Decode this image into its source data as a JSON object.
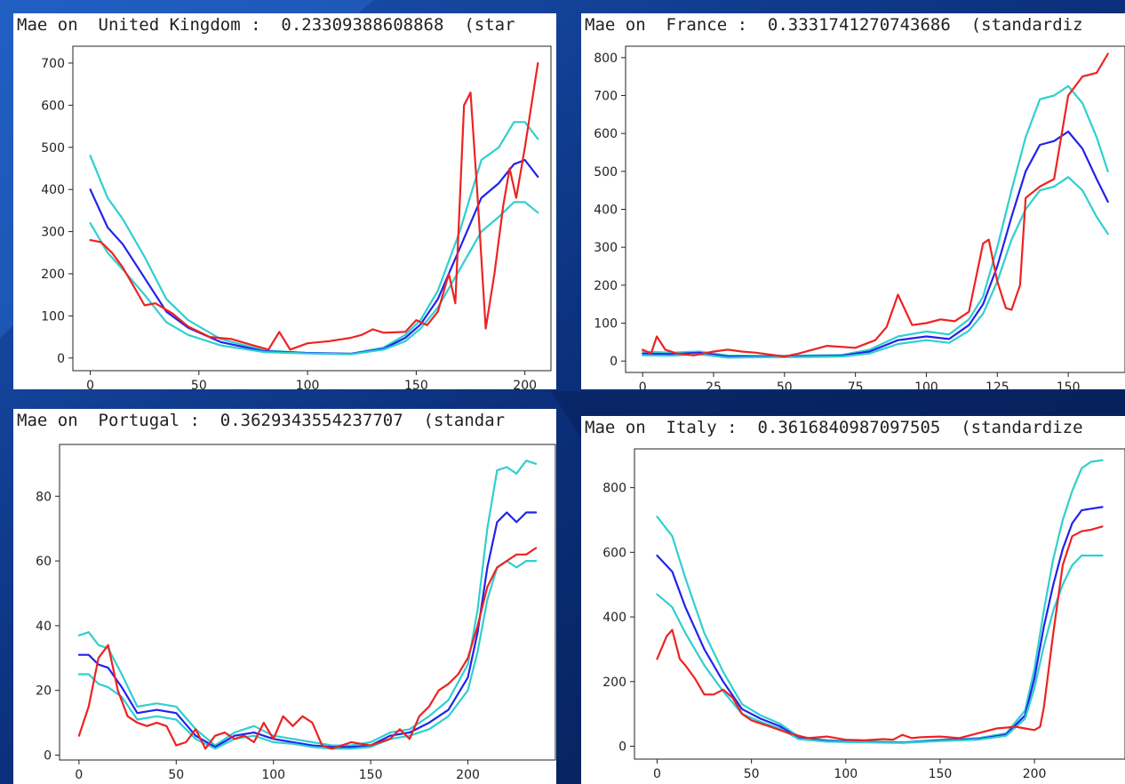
{
  "chart_data": [
    {
      "type": "line",
      "title": "Mae on  United Kingdom :  0.23309388608868  (star",
      "xlim": [
        -8,
        212
      ],
      "ylim": [
        -30,
        740
      ],
      "xticks": [
        0,
        50,
        100,
        150,
        200
      ],
      "yticks": [
        0,
        100,
        200,
        300,
        400,
        500,
        600,
        700
      ],
      "series": [
        {
          "color": "#30cfcf",
          "x": [
            0,
            8,
            15,
            25,
            35,
            45,
            60,
            80,
            100,
            120,
            135,
            145,
            152,
            160,
            170,
            180,
            188,
            195,
            200,
            206
          ],
          "y": [
            480,
            380,
            330,
            240,
            140,
            90,
            45,
            18,
            12,
            10,
            25,
            55,
            90,
            160,
            300,
            470,
            500,
            560,
            560,
            520
          ]
        },
        {
          "color": "#2222ee",
          "x": [
            0,
            8,
            15,
            25,
            35,
            45,
            60,
            80,
            100,
            120,
            135,
            145,
            152,
            160,
            170,
            180,
            188,
            195,
            200,
            206
          ],
          "y": [
            400,
            310,
            270,
            190,
            110,
            72,
            38,
            16,
            12,
            10,
            22,
            48,
            80,
            140,
            260,
            380,
            415,
            460,
            470,
            430
          ]
        },
        {
          "color": "#30cfcf",
          "x": [
            0,
            8,
            15,
            25,
            35,
            45,
            60,
            80,
            100,
            120,
            135,
            145,
            152,
            160,
            170,
            180,
            188,
            195,
            200,
            206
          ],
          "y": [
            320,
            250,
            210,
            150,
            85,
            55,
            30,
            14,
            11,
            9,
            20,
            40,
            70,
            120,
            210,
            300,
            335,
            370,
            370,
            345
          ]
        },
        {
          "color": "#ee2222",
          "x": [
            0,
            5,
            10,
            15,
            20,
            25,
            30,
            38,
            45,
            55,
            65,
            75,
            82,
            87,
            92,
            100,
            110,
            120,
            125,
            130,
            135,
            145,
            150,
            155,
            160,
            165,
            168,
            172,
            175,
            178,
            182,
            186,
            190,
            193,
            196,
            200,
            203,
            206
          ],
          "y": [
            280,
            275,
            250,
            215,
            170,
            125,
            130,
            105,
            75,
            50,
            45,
            30,
            20,
            62,
            20,
            35,
            40,
            48,
            55,
            68,
            60,
            62,
            90,
            78,
            110,
            200,
            130,
            600,
            630,
            400,
            70,
            200,
            360,
            450,
            380,
            500,
            600,
            700
          ]
        }
      ]
    },
    {
      "type": "line",
      "title": "Mae on  France :  0.3331741270743686  (standardiz",
      "xlim": [
        -6,
        170
      ],
      "ylim": [
        -30,
        830
      ],
      "xticks": [
        0,
        25,
        50,
        75,
        100,
        125,
        150
      ],
      "yticks": [
        0,
        100,
        200,
        300,
        400,
        500,
        600,
        700,
        800
      ],
      "series": [
        {
          "color": "#30cfcf",
          "x": [
            0,
            10,
            20,
            30,
            40,
            50,
            60,
            70,
            80,
            90,
            100,
            108,
            115,
            120,
            125,
            130,
            135,
            140,
            145,
            150,
            155,
            160,
            164
          ],
          "y": [
            25,
            22,
            25,
            15,
            14,
            14,
            15,
            16,
            30,
            65,
            78,
            70,
            110,
            170,
            300,
            450,
            590,
            690,
            700,
            725,
            680,
            590,
            500
          ]
        },
        {
          "color": "#2222ee",
          "x": [
            0,
            10,
            20,
            30,
            40,
            50,
            60,
            70,
            80,
            90,
            100,
            108,
            115,
            120,
            125,
            130,
            135,
            140,
            145,
            150,
            155,
            160,
            164
          ],
          "y": [
            20,
            18,
            22,
            12,
            12,
            12,
            13,
            14,
            25,
            55,
            65,
            58,
            95,
            150,
            250,
            380,
            500,
            570,
            580,
            605,
            560,
            480,
            420
          ]
        },
        {
          "color": "#30cfcf",
          "x": [
            0,
            10,
            20,
            30,
            40,
            50,
            60,
            70,
            80,
            90,
            100,
            108,
            115,
            120,
            125,
            130,
            135,
            140,
            145,
            150,
            155,
            160,
            164
          ],
          "y": [
            15,
            14,
            18,
            9,
            10,
            10,
            11,
            12,
            20,
            45,
            55,
            48,
            80,
            125,
            210,
            320,
            400,
            450,
            460,
            485,
            450,
            380,
            335
          ]
        },
        {
          "color": "#ee2222",
          "x": [
            0,
            3,
            5,
            8,
            12,
            18,
            25,
            30,
            35,
            40,
            50,
            55,
            65,
            75,
            82,
            86,
            90,
            95,
            100,
            105,
            110,
            115,
            120,
            122,
            125,
            128,
            130,
            133,
            135,
            140,
            145,
            150,
            155,
            160,
            164
          ],
          "y": [
            30,
            20,
            65,
            30,
            20,
            15,
            25,
            30,
            25,
            22,
            12,
            20,
            40,
            35,
            55,
            90,
            175,
            95,
            100,
            110,
            105,
            130,
            310,
            320,
            210,
            140,
            135,
            200,
            430,
            460,
            480,
            700,
            750,
            760,
            810
          ]
        }
      ]
    },
    {
      "type": "line",
      "title": "Mae on  Portugal :  0.3629343554237707  (standar",
      "xlim": [
        -10,
        245
      ],
      "ylim": [
        -1.5,
        96
      ],
      "xticks": [
        0,
        50,
        100,
        150,
        200
      ],
      "yticks": [
        0,
        20,
        40,
        60,
        80
      ],
      "series": [
        {
          "color": "#30cfcf",
          "x": [
            0,
            5,
            10,
            15,
            22,
            30,
            40,
            50,
            60,
            70,
            80,
            90,
            100,
            110,
            120,
            130,
            140,
            150,
            160,
            170,
            180,
            190,
            200,
            205,
            210,
            215,
            220,
            225,
            230,
            235
          ],
          "y": [
            37,
            38,
            34,
            33,
            25,
            15,
            16,
            15,
            8,
            3,
            7,
            9,
            6,
            5,
            4,
            3,
            3,
            4,
            7,
            8,
            12,
            17,
            28,
            45,
            70,
            88,
            89,
            87,
            91,
            90
          ]
        },
        {
          "color": "#2222ee",
          "x": [
            0,
            5,
            10,
            15,
            22,
            30,
            40,
            50,
            60,
            70,
            80,
            90,
            100,
            110,
            120,
            130,
            140,
            150,
            160,
            170,
            180,
            190,
            200,
            205,
            210,
            215,
            220,
            225,
            230,
            235
          ],
          "y": [
            31,
            31,
            28,
            27,
            21,
            13,
            14,
            13,
            6,
            2.5,
            6,
            7,
            5,
            4,
            3,
            2.5,
            2.5,
            3,
            6,
            7,
            10,
            14,
            24,
            38,
            58,
            72,
            75,
            72,
            75,
            75
          ]
        },
        {
          "color": "#30cfcf",
          "x": [
            0,
            5,
            10,
            15,
            22,
            30,
            40,
            50,
            60,
            70,
            80,
            90,
            100,
            110,
            120,
            130,
            140,
            150,
            160,
            170,
            180,
            190,
            200,
            205,
            210,
            215,
            220,
            225,
            230,
            235
          ],
          "y": [
            25,
            25,
            22,
            21,
            18,
            11,
            12,
            11,
            5,
            2,
            5,
            6,
            4,
            3.5,
            2.5,
            2,
            2,
            2.5,
            5,
            6,
            8,
            12,
            20,
            32,
            48,
            58,
            60,
            58,
            60,
            60
          ]
        },
        {
          "color": "#ee2222",
          "x": [
            0,
            5,
            10,
            15,
            20,
            25,
            30,
            35,
            40,
            45,
            50,
            55,
            60,
            65,
            70,
            75,
            80,
            85,
            90,
            95,
            100,
            105,
            110,
            115,
            120,
            125,
            130,
            140,
            150,
            160,
            165,
            170,
            175,
            180,
            185,
            190,
            195,
            200,
            205,
            210,
            215,
            220,
            225,
            230,
            235
          ],
          "y": [
            6,
            15,
            30,
            34,
            20,
            12,
            10,
            9,
            10,
            9,
            3,
            4,
            8,
            2,
            6,
            7,
            5,
            6,
            4,
            10,
            5,
            12,
            9,
            12,
            10,
            3,
            2,
            4,
            3,
            5,
            8,
            5,
            12,
            15,
            20,
            22,
            25,
            30,
            40,
            52,
            58,
            60,
            62,
            62,
            64
          ]
        }
      ]
    },
    {
      "type": "line",
      "title": "Mae on  Italy :  0.3616840987097505  (standardize",
      "xlim": [
        -12,
        248
      ],
      "ylim": [
        -40,
        920
      ],
      "xticks": [
        0,
        50,
        100,
        150,
        200
      ],
      "yticks": [
        0,
        200,
        400,
        600,
        800
      ],
      "series": [
        {
          "color": "#30cfcf",
          "x": [
            0,
            8,
            15,
            25,
            35,
            45,
            55,
            65,
            75,
            90,
            110,
            130,
            150,
            170,
            185,
            195,
            200,
            205,
            210,
            215,
            220,
            225,
            230,
            236
          ],
          "y": [
            710,
            650,
            520,
            350,
            230,
            130,
            95,
            70,
            30,
            18,
            15,
            12,
            20,
            25,
            40,
            110,
            240,
            420,
            580,
            700,
            790,
            860,
            880,
            885
          ]
        },
        {
          "color": "#2222ee",
          "x": [
            0,
            8,
            15,
            25,
            35,
            45,
            55,
            65,
            75,
            90,
            110,
            130,
            150,
            170,
            185,
            195,
            200,
            205,
            210,
            215,
            220,
            225,
            230,
            236
          ],
          "y": [
            590,
            540,
            430,
            300,
            200,
            115,
            85,
            62,
            25,
            16,
            13,
            11,
            18,
            22,
            36,
            95,
            210,
            370,
            500,
            610,
            690,
            730,
            735,
            740
          ]
        },
        {
          "color": "#30cfcf",
          "x": [
            0,
            8,
            15,
            25,
            35,
            45,
            55,
            65,
            75,
            90,
            110,
            130,
            150,
            170,
            185,
            195,
            200,
            205,
            210,
            215,
            220,
            225,
            230,
            236
          ],
          "y": [
            470,
            430,
            350,
            250,
            170,
            100,
            75,
            55,
            22,
            14,
            12,
            10,
            16,
            20,
            32,
            85,
            180,
            310,
            420,
            500,
            560,
            590,
            590,
            590
          ]
        },
        {
          "color": "#ee2222",
          "x": [
            0,
            5,
            8,
            12,
            15,
            20,
            25,
            30,
            35,
            40,
            45,
            50,
            60,
            70,
            80,
            90,
            100,
            110,
            120,
            125,
            130,
            135,
            140,
            150,
            160,
            170,
            180,
            190,
            195,
            200,
            203,
            205,
            210,
            215,
            220,
            225,
            230,
            236
          ],
          "y": [
            270,
            340,
            360,
            270,
            250,
            210,
            160,
            160,
            175,
            150,
            100,
            80,
            60,
            40,
            25,
            30,
            20,
            18,
            22,
            20,
            35,
            25,
            28,
            30,
            25,
            40,
            55,
            60,
            55,
            50,
            60,
            120,
            350,
            560,
            650,
            665,
            670,
            680
          ]
        }
      ]
    }
  ]
}
